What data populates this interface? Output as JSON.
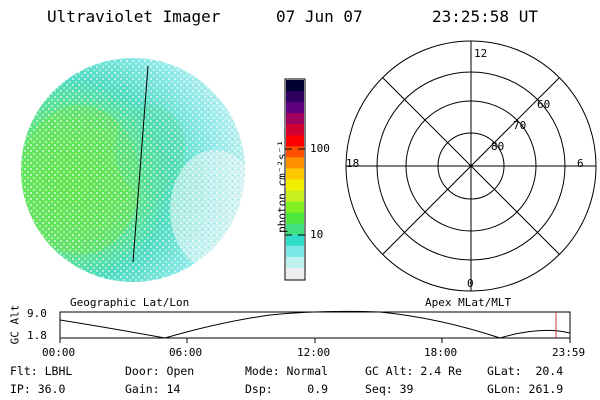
{
  "header": {
    "title": "Ultraviolet Imager",
    "date": "07 Jun 07",
    "time": "23:25:58 UT"
  },
  "colorbar": {
    "unit_label": "photon cm⁻²s⁻¹",
    "ticks": [
      "100",
      "10"
    ],
    "colors": [
      "#eeeeee",
      "#bff0f0",
      "#7ae8e8",
      "#30dcc8",
      "#40e080",
      "#50e840",
      "#80f020",
      "#c8f020",
      "#f0f000",
      "#ffc800",
      "#ff9000",
      "#ff5000",
      "#ff0000",
      "#d00030",
      "#a00060",
      "#600080",
      "#300060",
      "#000030"
    ]
  },
  "panels": {
    "left_label": "Geographic Lat/Lon",
    "right_label": "Apex MLat/MLT"
  },
  "polar": {
    "mlt_labels": {
      "top": "12",
      "bottom": "0",
      "left": "18",
      "right": "6"
    },
    "lat_labels": [
      "60",
      "70",
      "80"
    ]
  },
  "altitude_plot": {
    "ylabel": "GC Alt",
    "y_ticks": [
      "9.0",
      "1.8"
    ],
    "x_ticks": [
      "00:00",
      "06:00",
      "12:00",
      "18:00",
      "23:59"
    ]
  },
  "info": {
    "filter": "Flt: LBHL",
    "ip": "IP: 36.0",
    "door": "Door: Open",
    "gain": "Gain: 14",
    "mode": "Mode: Normal",
    "dsp": "Dsp:     0.9",
    "gc_alt": "GC Alt: 2.4 Re",
    "seq": "Seq: 39",
    "glat": "GLat:  20.4",
    "glon": "GLon: 261.9"
  }
}
